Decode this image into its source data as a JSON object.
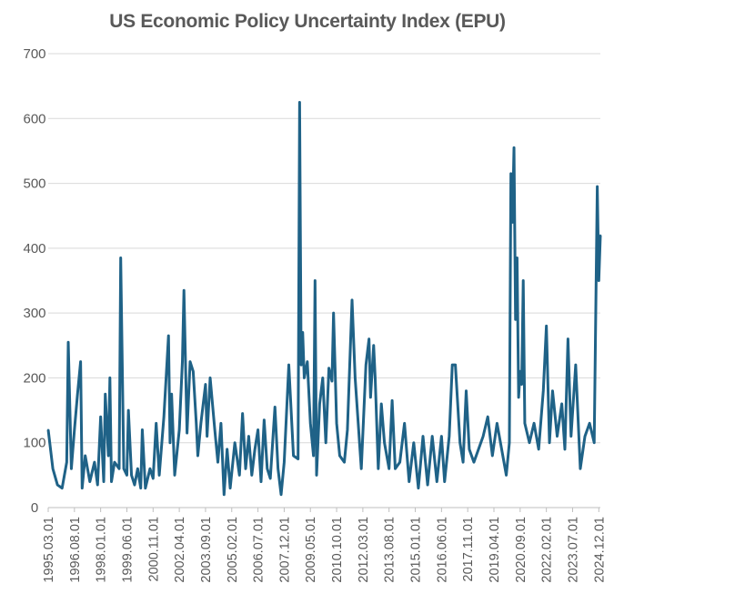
{
  "chart_data": {
    "type": "line",
    "title": "US Economic Policy Uncertainty Index (EPU)",
    "xlabel": "",
    "ylabel": "",
    "ylim": [
      0,
      700
    ],
    "yticks": [
      0,
      100,
      200,
      300,
      400,
      500,
      600,
      700
    ],
    "x_range": [
      "1995.03",
      "2025.01"
    ],
    "x_tick_labels": [
      "1995.03.01",
      "1996.08.01",
      "1998.01.01",
      "1999.06.01",
      "2000.11.01",
      "2002.04.01",
      "2003.09.01",
      "2005.02.01",
      "2006.07.01",
      "2007.12.01",
      "2009.05.01",
      "2010.10.01",
      "2012.03.01",
      "2013.08.01",
      "2015.01.01",
      "2016.06.01",
      "2017.11.01",
      "2019.04.01",
      "2020.09.01",
      "2022.02.01",
      "2023.07.01",
      "2024.12.01"
    ],
    "grid": true,
    "legend": "none",
    "series": [
      {
        "color": "#1f6287",
        "points": [
          [
            "1995.03",
            120
          ],
          [
            "1995.06",
            60
          ],
          [
            "1995.09",
            35
          ],
          [
            "1995.12",
            30
          ],
          [
            "1996.03",
            70
          ],
          [
            "1996.04",
            255
          ],
          [
            "1996.06",
            60
          ],
          [
            "1996.08",
            120
          ],
          [
            "1996.10",
            175
          ],
          [
            "1996.12",
            225
          ],
          [
            "1997.01",
            30
          ],
          [
            "1997.03",
            80
          ],
          [
            "1997.06",
            40
          ],
          [
            "1997.09",
            70
          ],
          [
            "1997.11",
            35
          ],
          [
            "1998.01",
            140
          ],
          [
            "1998.03",
            40
          ],
          [
            "1998.04",
            175
          ],
          [
            "1998.06",
            80
          ],
          [
            "1998.07",
            200
          ],
          [
            "1998.08",
            40
          ],
          [
            "1998.10",
            70
          ],
          [
            "1999.01",
            60
          ],
          [
            "1999.02",
            385
          ],
          [
            "1999.04",
            60
          ],
          [
            "1999.06",
            50
          ],
          [
            "1999.07",
            150
          ],
          [
            "1999.09",
            50
          ],
          [
            "1999.11",
            35
          ],
          [
            "2000.01",
            60
          ],
          [
            "2000.03",
            30
          ],
          [
            "2000.04",
            120
          ],
          [
            "2000.06",
            30
          ],
          [
            "2000.09",
            60
          ],
          [
            "2000.11",
            45
          ],
          [
            "2001.01",
            130
          ],
          [
            "2001.03",
            50
          ],
          [
            "2001.06",
            140
          ],
          [
            "2001.09",
            265
          ],
          [
            "2001.10",
            100
          ],
          [
            "2001.11",
            175
          ],
          [
            "2002.01",
            50
          ],
          [
            "2002.04",
            120
          ],
          [
            "2002.06",
            225
          ],
          [
            "2002.07",
            335
          ],
          [
            "2002.09",
            115
          ],
          [
            "2002.11",
            225
          ],
          [
            "2003.01",
            210
          ],
          [
            "2003.03",
            130
          ],
          [
            "2003.04",
            80
          ],
          [
            "2003.06",
            130
          ],
          [
            "2003.09",
            190
          ],
          [
            "2003.10",
            110
          ],
          [
            "2003.12",
            200
          ],
          [
            "2004.03",
            120
          ],
          [
            "2004.05",
            70
          ],
          [
            "2004.07",
            130
          ],
          [
            "2004.09",
            20
          ],
          [
            "2004.11",
            90
          ],
          [
            "2005.01",
            30
          ],
          [
            "2005.04",
            100
          ],
          [
            "2005.07",
            50
          ],
          [
            "2005.09",
            145
          ],
          [
            "2005.11",
            60
          ],
          [
            "2006.01",
            110
          ],
          [
            "2006.03",
            50
          ],
          [
            "2006.05",
            90
          ],
          [
            "2006.07",
            120
          ],
          [
            "2006.09",
            40
          ],
          [
            "2006.11",
            135
          ],
          [
            "2007.01",
            60
          ],
          [
            "2007.03",
            45
          ],
          [
            "2007.06",
            155
          ],
          [
            "2007.08",
            60
          ],
          [
            "2007.10",
            20
          ],
          [
            "2007.12",
            70
          ],
          [
            "2008.03",
            220
          ],
          [
            "2008.06",
            80
          ],
          [
            "2008.09",
            75
          ],
          [
            "2008.10",
            625
          ],
          [
            "2008.11",
            220
          ],
          [
            "2008.12",
            270
          ],
          [
            "2009.01",
            200
          ],
          [
            "2009.03",
            225
          ],
          [
            "2009.05",
            130
          ],
          [
            "2009.07",
            80
          ],
          [
            "2009.08",
            350
          ],
          [
            "2009.09",
            50
          ],
          [
            "2009.11",
            160
          ],
          [
            "2010.01",
            200
          ],
          [
            "2010.03",
            100
          ],
          [
            "2010.05",
            215
          ],
          [
            "2010.07",
            195
          ],
          [
            "2010.08",
            300
          ],
          [
            "2010.10",
            130
          ],
          [
            "2010.12",
            80
          ],
          [
            "2011.03",
            70
          ],
          [
            "2011.05",
            120
          ],
          [
            "2011.08",
            320
          ],
          [
            "2011.10",
            200
          ],
          [
            "2011.12",
            130
          ],
          [
            "2012.02",
            60
          ],
          [
            "2012.05",
            220
          ],
          [
            "2012.07",
            260
          ],
          [
            "2012.08",
            170
          ],
          [
            "2012.10",
            250
          ],
          [
            "2012.11",
            200
          ],
          [
            "2013.01",
            60
          ],
          [
            "2013.03",
            160
          ],
          [
            "2013.05",
            100
          ],
          [
            "2013.08",
            60
          ],
          [
            "2013.10",
            165
          ],
          [
            "2013.12",
            60
          ],
          [
            "2014.03",
            70
          ],
          [
            "2014.06",
            130
          ],
          [
            "2014.09",
            40
          ],
          [
            "2014.12",
            100
          ],
          [
            "2015.03",
            30
          ],
          [
            "2015.06",
            110
          ],
          [
            "2015.09",
            35
          ],
          [
            "2015.12",
            110
          ],
          [
            "2016.03",
            40
          ],
          [
            "2016.06",
            110
          ],
          [
            "2016.08",
            40
          ],
          [
            "2016.11",
            110
          ],
          [
            "2017.01",
            220
          ],
          [
            "2017.03",
            220
          ],
          [
            "2017.06",
            100
          ],
          [
            "2017.08",
            70
          ],
          [
            "2017.10",
            180
          ],
          [
            "2017.12",
            90
          ],
          [
            "2018.03",
            70
          ],
          [
            "2018.06",
            90
          ],
          [
            "2018.09",
            110
          ],
          [
            "2018.12",
            140
          ],
          [
            "2019.03",
            80
          ],
          [
            "2019.06",
            130
          ],
          [
            "2019.09",
            90
          ],
          [
            "2019.12",
            50
          ],
          [
            "2020.02",
            100
          ],
          [
            "2020.03",
            515
          ],
          [
            "2020.04",
            440
          ],
          [
            "2020.05",
            555
          ],
          [
            "2020.06",
            290
          ],
          [
            "2020.07",
            385
          ],
          [
            "2020.08",
            170
          ],
          [
            "2020.09",
            210
          ],
          [
            "2020.10",
            190
          ],
          [
            "2020.11",
            350
          ],
          [
            "2020.12",
            130
          ],
          [
            "2021.03",
            100
          ],
          [
            "2021.06",
            130
          ],
          [
            "2021.09",
            90
          ],
          [
            "2021.12",
            180
          ],
          [
            "2022.02",
            280
          ],
          [
            "2022.04",
            100
          ],
          [
            "2022.06",
            180
          ],
          [
            "2022.09",
            110
          ],
          [
            "2022.12",
            160
          ],
          [
            "2023.02",
            90
          ],
          [
            "2023.04",
            260
          ],
          [
            "2023.06",
            110
          ],
          [
            "2023.09",
            220
          ],
          [
            "2023.12",
            60
          ],
          [
            "2024.03",
            110
          ],
          [
            "2024.06",
            130
          ],
          [
            "2024.09",
            100
          ],
          [
            "2024.11",
            495
          ],
          [
            "2024.12",
            350
          ],
          [
            "2025.01",
            420
          ]
        ]
      }
    ]
  }
}
